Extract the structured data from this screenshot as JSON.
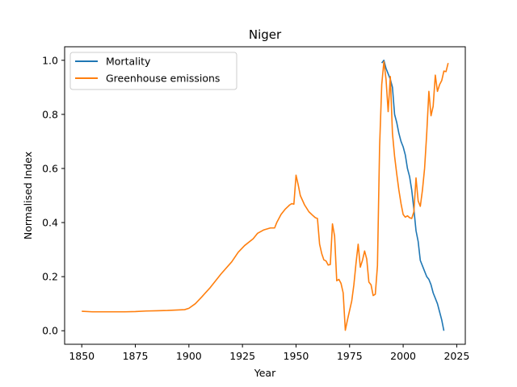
{
  "chart_data": {
    "type": "line",
    "title": "Niger",
    "xlabel": "Year",
    "ylabel": "Normalised Index",
    "xlim": [
      1842,
      2029
    ],
    "ylim": [
      -0.05,
      1.05
    ],
    "xticks": [
      1850,
      1875,
      1900,
      1925,
      1950,
      1975,
      2000,
      2025
    ],
    "yticks": [
      0.0,
      0.2,
      0.4,
      0.6,
      0.8,
      1.0
    ],
    "ytick_labels": [
      "0.0",
      "0.2",
      "0.4",
      "0.6",
      "0.8",
      "1.0"
    ],
    "grid": false,
    "legend_position": "top-left",
    "series": [
      {
        "name": "Mortality",
        "color": "#1f77b4",
        "points": [
          [
            1990,
            0.99
          ],
          [
            1991,
            1.0
          ],
          [
            1992,
            0.97
          ],
          [
            1993,
            0.95
          ],
          [
            1994,
            0.93
          ],
          [
            1995,
            0.9
          ],
          [
            1996,
            0.8
          ],
          [
            1997,
            0.77
          ],
          [
            1998,
            0.73
          ],
          [
            1999,
            0.7
          ],
          [
            2000,
            0.68
          ],
          [
            2001,
            0.65
          ],
          [
            2002,
            0.6
          ],
          [
            2003,
            0.57
          ],
          [
            2004,
            0.52
          ],
          [
            2005,
            0.45
          ],
          [
            2006,
            0.37
          ],
          [
            2007,
            0.33
          ],
          [
            2008,
            0.26
          ],
          [
            2009,
            0.24
          ],
          [
            2010,
            0.22
          ],
          [
            2011,
            0.2
          ],
          [
            2012,
            0.19
          ],
          [
            2013,
            0.17
          ],
          [
            2014,
            0.14
          ],
          [
            2015,
            0.12
          ],
          [
            2016,
            0.1
          ],
          [
            2017,
            0.07
          ],
          [
            2018,
            0.04
          ],
          [
            2019,
            0.0
          ]
        ]
      },
      {
        "name": "Greenhouse emissions",
        "color": "#ff7f0e",
        "points": [
          [
            1850,
            0.072
          ],
          [
            1855,
            0.07
          ],
          [
            1860,
            0.07
          ],
          [
            1865,
            0.07
          ],
          [
            1870,
            0.07
          ],
          [
            1875,
            0.071
          ],
          [
            1880,
            0.073
          ],
          [
            1885,
            0.074
          ],
          [
            1890,
            0.075
          ],
          [
            1895,
            0.077
          ],
          [
            1898,
            0.078
          ],
          [
            1900,
            0.083
          ],
          [
            1903,
            0.1
          ],
          [
            1906,
            0.125
          ],
          [
            1910,
            0.16
          ],
          [
            1915,
            0.21
          ],
          [
            1920,
            0.255
          ],
          [
            1923,
            0.29
          ],
          [
            1926,
            0.315
          ],
          [
            1930,
            0.34
          ],
          [
            1932,
            0.36
          ],
          [
            1935,
            0.373
          ],
          [
            1938,
            0.38
          ],
          [
            1940,
            0.38
          ],
          [
            1941,
            0.4
          ],
          [
            1943,
            0.43
          ],
          [
            1945,
            0.45
          ],
          [
            1947,
            0.465
          ],
          [
            1948,
            0.47
          ],
          [
            1949,
            0.468
          ],
          [
            1950,
            0.575
          ],
          [
            1951,
            0.54
          ],
          [
            1952,
            0.5
          ],
          [
            1954,
            0.465
          ],
          [
            1956,
            0.44
          ],
          [
            1958,
            0.425
          ],
          [
            1959,
            0.418
          ],
          [
            1960,
            0.415
          ],
          [
            1961,
            0.32
          ],
          [
            1962,
            0.285
          ],
          [
            1963,
            0.262
          ],
          [
            1964,
            0.258
          ],
          [
            1965,
            0.243
          ],
          [
            1966,
            0.245
          ],
          [
            1967,
            0.395
          ],
          [
            1968,
            0.35
          ],
          [
            1969,
            0.185
          ],
          [
            1970,
            0.19
          ],
          [
            1971,
            0.175
          ],
          [
            1972,
            0.14
          ],
          [
            1973,
            0.002
          ],
          [
            1974,
            0.04
          ],
          [
            1975,
            0.075
          ],
          [
            1976,
            0.11
          ],
          [
            1977,
            0.17
          ],
          [
            1978,
            0.25
          ],
          [
            1979,
            0.32
          ],
          [
            1980,
            0.235
          ],
          [
            1981,
            0.26
          ],
          [
            1982,
            0.295
          ],
          [
            1983,
            0.265
          ],
          [
            1984,
            0.18
          ],
          [
            1985,
            0.17
          ],
          [
            1986,
            0.13
          ],
          [
            1987,
            0.135
          ],
          [
            1988,
            0.24
          ],
          [
            1989,
            0.68
          ],
          [
            1990,
            0.91
          ],
          [
            1991,
            0.995
          ],
          [
            1992,
            0.93
          ],
          [
            1993,
            0.81
          ],
          [
            1994,
            0.94
          ],
          [
            1995,
            0.73
          ],
          [
            1996,
            0.645
          ],
          [
            1997,
            0.58
          ],
          [
            1998,
            0.52
          ],
          [
            1999,
            0.47
          ],
          [
            2000,
            0.43
          ],
          [
            2001,
            0.42
          ],
          [
            2002,
            0.425
          ],
          [
            2003,
            0.418
          ],
          [
            2004,
            0.415
          ],
          [
            2005,
            0.44
          ],
          [
            2006,
            0.565
          ],
          [
            2007,
            0.48
          ],
          [
            2008,
            0.46
          ],
          [
            2009,
            0.52
          ],
          [
            2010,
            0.6
          ],
          [
            2011,
            0.73
          ],
          [
            2012,
            0.885
          ],
          [
            2013,
            0.795
          ],
          [
            2014,
            0.83
          ],
          [
            2015,
            0.945
          ],
          [
            2016,
            0.885
          ],
          [
            2017,
            0.91
          ],
          [
            2018,
            0.925
          ],
          [
            2019,
            0.96
          ],
          [
            2020,
            0.958
          ],
          [
            2021,
            0.99
          ]
        ]
      }
    ]
  }
}
